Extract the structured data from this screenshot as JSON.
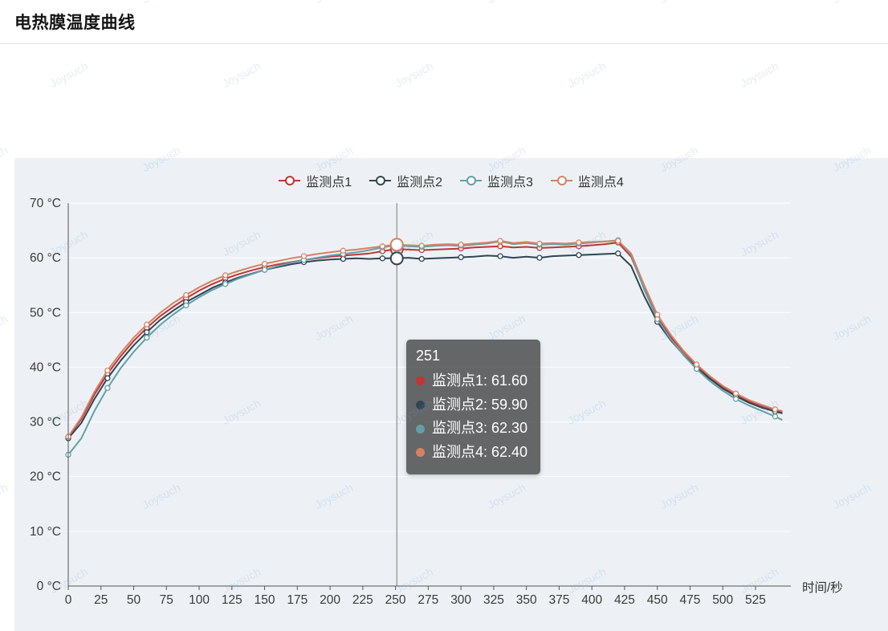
{
  "page": {
    "title": "电热膜温度曲线"
  },
  "watermark": {
    "text": "Joysuch"
  },
  "axis": {
    "xlabel": "时间/秒",
    "y_unit": "°C"
  },
  "tooltip": {
    "x_value": "251",
    "rows": [
      {
        "name": "监测点1",
        "value": "61.60",
        "color": "#c23531"
      },
      {
        "name": "监测点2",
        "value": "59.90",
        "color": "#2f4554"
      },
      {
        "name": "监测点3",
        "value": "62.30",
        "color": "#61a0a8"
      },
      {
        "name": "监测点4",
        "value": "62.40",
        "color": "#d48265"
      }
    ]
  },
  "chart_data": {
    "type": "line",
    "title": "电热膜温度曲线",
    "xlabel": "时间/秒",
    "ylabel": "",
    "xlim": [
      0,
      552
    ],
    "ylim": [
      0,
      70
    ],
    "x_ticks": [
      0,
      25,
      50,
      75,
      100,
      125,
      150,
      175,
      200,
      225,
      250,
      275,
      300,
      325,
      350,
      375,
      400,
      425,
      450,
      475,
      500,
      525
    ],
    "y_ticks": [
      0,
      10,
      20,
      30,
      40,
      50,
      60,
      70
    ],
    "y_tick_labels": [
      "0 °C",
      "10 °C",
      "20 °C",
      "30 °C",
      "40 °C",
      "50 °C",
      "60 °C",
      "70 °C"
    ],
    "legend_position": "top",
    "grid": "horizontal",
    "crosshair_x": 251,
    "x": [
      0,
      10,
      20,
      30,
      40,
      50,
      60,
      70,
      80,
      90,
      100,
      110,
      120,
      130,
      140,
      150,
      160,
      170,
      180,
      190,
      200,
      210,
      220,
      230,
      240,
      250,
      260,
      270,
      280,
      290,
      300,
      310,
      320,
      330,
      340,
      350,
      360,
      370,
      380,
      390,
      400,
      410,
      420,
      430,
      440,
      450,
      460,
      470,
      480,
      490,
      500,
      510,
      520,
      530,
      540,
      545
    ],
    "series": [
      {
        "name": "监测点1",
        "color": "#c23531",
        "values": [
          27.2,
          30.5,
          35.0,
          38.8,
          42.0,
          44.8,
          47.2,
          49.3,
          51.0,
          52.6,
          54.0,
          55.2,
          56.2,
          57.0,
          57.7,
          58.3,
          58.8,
          59.2,
          59.6,
          59.9,
          60.2,
          60.4,
          60.6,
          60.8,
          61.2,
          61.6,
          61.5,
          61.4,
          61.5,
          61.6,
          61.7,
          61.9,
          62.0,
          62.1,
          61.9,
          62.0,
          61.8,
          61.9,
          62.0,
          62.1,
          62.3,
          62.5,
          62.8,
          60.2,
          54.5,
          49.0,
          45.6,
          42.8,
          40.3,
          38.2,
          36.4,
          35.0,
          33.8,
          32.9,
          32.1,
          31.8
        ]
      },
      {
        "name": "监测点2",
        "color": "#2f4554",
        "values": [
          27.0,
          29.8,
          34.2,
          38.0,
          41.2,
          44.0,
          46.4,
          48.6,
          50.3,
          51.9,
          53.2,
          54.5,
          55.5,
          56.4,
          57.1,
          57.8,
          58.3,
          58.8,
          59.2,
          59.5,
          59.7,
          59.8,
          59.9,
          59.8,
          59.9,
          59.9,
          60.0,
          59.8,
          59.9,
          60.0,
          60.1,
          60.2,
          60.4,
          60.3,
          60.0,
          60.2,
          60.0,
          60.3,
          60.4,
          60.5,
          60.6,
          60.7,
          60.8,
          58.5,
          53.0,
          48.3,
          45.0,
          42.3,
          39.9,
          37.9,
          36.1,
          34.7,
          33.5,
          32.6,
          31.9,
          31.6
        ]
      },
      {
        "name": "监测点3",
        "color": "#61a0a8",
        "values": [
          24.0,
          27.0,
          32.0,
          36.2,
          39.8,
          42.8,
          45.4,
          47.7,
          49.6,
          51.3,
          52.8,
          54.1,
          55.2,
          56.2,
          57.0,
          57.8,
          58.5,
          59.1,
          59.6,
          60.0,
          60.4,
          60.7,
          61.0,
          61.4,
          61.9,
          62.3,
          62.1,
          62.0,
          62.2,
          62.3,
          62.2,
          62.4,
          62.6,
          63.0,
          62.5,
          62.7,
          62.4,
          62.5,
          62.4,
          62.6,
          62.8,
          63.0,
          63.2,
          60.5,
          54.2,
          48.8,
          45.2,
          42.2,
          39.7,
          37.5,
          35.7,
          34.2,
          33.0,
          32.0,
          31.0,
          30.4
        ]
      },
      {
        "name": "监测点4",
        "color": "#d48265",
        "values": [
          27.3,
          30.8,
          35.5,
          39.4,
          42.6,
          45.4,
          47.8,
          49.9,
          51.7,
          53.2,
          54.6,
          55.8,
          56.8,
          57.6,
          58.3,
          58.9,
          59.4,
          59.9,
          60.3,
          60.7,
          61.0,
          61.3,
          61.5,
          61.8,
          62.1,
          62.4,
          62.3,
          62.2,
          62.4,
          62.5,
          62.4,
          62.6,
          62.8,
          63.1,
          62.7,
          62.9,
          62.6,
          62.7,
          62.6,
          62.8,
          62.9,
          63.0,
          63.1,
          60.8,
          55.0,
          49.6,
          46.0,
          43.0,
          40.5,
          38.4,
          36.6,
          35.2,
          34.0,
          33.1,
          32.3,
          32.0
        ]
      }
    ]
  }
}
